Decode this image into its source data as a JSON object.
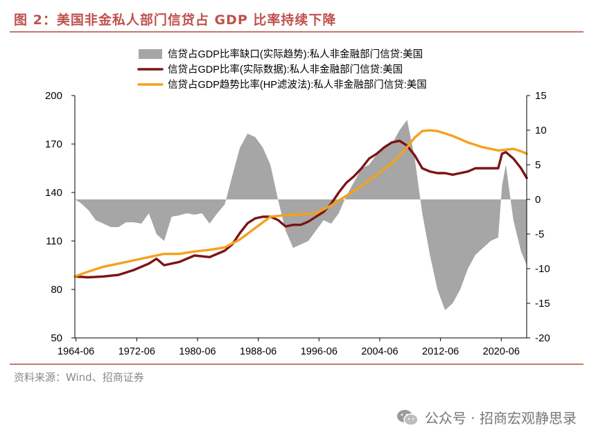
{
  "figure": {
    "title": "图 2：美国非金私人部门信贷占 GDP 比率持续下降",
    "source": "资料来源：Wind、招商证券",
    "watermark": "公众号 · 招商宏观静思录"
  },
  "chart_data": {
    "type": "line",
    "title": "",
    "x_ticks": [
      "1964-06",
      "1972-06",
      "1980-06",
      "1988-06",
      "1996-06",
      "2004-06",
      "2012-06",
      "2020-06"
    ],
    "x_range": [
      1964.25,
      2023.75
    ],
    "y_left": {
      "range": [
        50,
        200
      ],
      "ticks": [
        50,
        80,
        110,
        140,
        170,
        200
      ]
    },
    "y_right": {
      "range": [
        -20,
        15
      ],
      "ticks": [
        -20,
        -15,
        -10,
        -5,
        0,
        5,
        10,
        15
      ]
    },
    "legend_position": "top-center",
    "series": [
      {
        "name": "信贷占GDP比率缺口(实际趋势):私人非金融部门信贷:美国",
        "type": "area",
        "axis": "right",
        "color": "#a6a6a6",
        "x": [
          1964.25,
          1965,
          1966,
          1967,
          1968,
          1969,
          1970,
          1971,
          1972,
          1973,
          1974,
          1975,
          1976,
          1977,
          1978,
          1979,
          1980,
          1981,
          1982,
          1983,
          1984,
          1985,
          1986,
          1987,
          1988,
          1989,
          1990,
          1991,
          1992,
          1993,
          1994,
          1995,
          1996,
          1997,
          1998,
          1999,
          2000,
          2001,
          2002,
          2003,
          2004,
          2005,
          2006,
          2007,
          2008,
          2009,
          2010,
          2011,
          2012,
          2013,
          2014,
          2015,
          2016,
          2017,
          2018,
          2019,
          2020,
          2020.5,
          2021,
          2022,
          2023,
          2023.75
        ],
        "values": [
          0,
          -0.5,
          -1.5,
          -3,
          -3.5,
          -4,
          -4,
          -3.3,
          -3.3,
          -3.5,
          -2,
          -5,
          -6,
          -2.5,
          -2.3,
          -2,
          -2.2,
          -2,
          -3.5,
          -2,
          -0.7,
          3.5,
          7.5,
          9.5,
          9,
          7.5,
          5,
          0,
          -4.5,
          -7,
          -6.5,
          -6,
          -4.5,
          -3,
          -3.5,
          -2,
          0.5,
          2.5,
          4.5,
          5,
          6.5,
          7.5,
          8,
          10,
          11.5,
          6,
          -2,
          -8,
          -13,
          -16,
          -15,
          -13,
          -10,
          -8,
          -7,
          -6,
          -5.5,
          2,
          5,
          -3,
          -7.5,
          -9.5
        ]
      },
      {
        "name": "信贷占GDP比率(实际数据):私人非金融部门信贷:美国",
        "type": "line",
        "axis": "left",
        "color": "#7b1416",
        "x": [
          1964.25,
          1966,
          1968,
          1970,
          1972,
          1974,
          1975,
          1976,
          1978,
          1980,
          1982,
          1984,
          1985,
          1986,
          1987,
          1988,
          1989,
          1990,
          1991,
          1992,
          1993,
          1994,
          1995,
          1996,
          1997,
          1998,
          1999,
          2000,
          2001,
          2002,
          2003,
          2004,
          2005,
          2006,
          2007,
          2008,
          2009,
          2010,
          2011,
          2012,
          2013,
          2014,
          2015,
          2016,
          2017,
          2018,
          2019,
          2020,
          2020.5,
          2021,
          2022,
          2023,
          2023.75
        ],
        "values": [
          88,
          87.5,
          88,
          89,
          92,
          96,
          99,
          95,
          97,
          101,
          100,
          104,
          108,
          115,
          121,
          124,
          125,
          125,
          123,
          119,
          120,
          120,
          122,
          125,
          128,
          133,
          140,
          146,
          150,
          155,
          161,
          164,
          168,
          171,
          172,
          169,
          163,
          155,
          153,
          152,
          152,
          151,
          152,
          153,
          155,
          155,
          155,
          155,
          164,
          165,
          161,
          155,
          149
        ]
      },
      {
        "name": "信贷占GDP趋势比率(HP滤波法):私人非金融部门信贷:美国",
        "type": "line",
        "axis": "left",
        "color": "#f4a11d",
        "x": [
          1964.25,
          1966,
          1968,
          1970,
          1972,
          1974,
          1976,
          1978,
          1980,
          1982,
          1984,
          1986,
          1988,
          1990,
          1992,
          1994,
          1996,
          1998,
          2000,
          2002,
          2004,
          2006,
          2008,
          2009,
          2010,
          2011,
          2012,
          2013,
          2014,
          2016,
          2018,
          2020,
          2021,
          2022,
          2023,
          2023.75
        ],
        "values": [
          88,
          91,
          94,
          96,
          98,
          100,
          102,
          102,
          103.5,
          104.5,
          106,
          111,
          118,
          125,
          126,
          126.5,
          127,
          132,
          138,
          144,
          151,
          158,
          168,
          174,
          178,
          178.5,
          178,
          176.5,
          175,
          171,
          168,
          166,
          166.5,
          167,
          165.5,
          164
        ]
      }
    ]
  }
}
